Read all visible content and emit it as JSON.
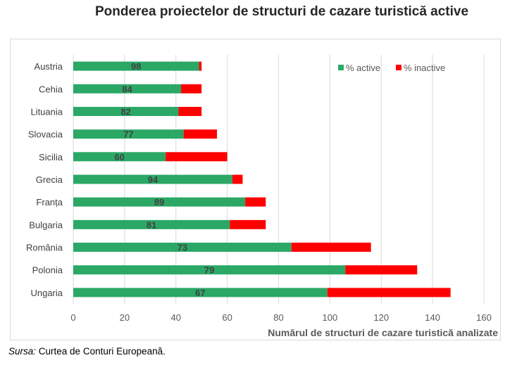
{
  "chart_data": {
    "type": "bar",
    "orientation": "horizontal",
    "stacked": true,
    "title": "Ponderea proiectelor de structuri de cazare turistică active",
    "xlabel": "Numărul de structuri de cazare turistică analizate",
    "ylabel": "",
    "xlim": [
      0,
      160
    ],
    "xticks": [
      0,
      20,
      40,
      60,
      80,
      100,
      120,
      140,
      160
    ],
    "grid": true,
    "legend_position": "top-right",
    "categories": [
      "Austria",
      "Cehia",
      "Lituania",
      "Slovacia",
      "Sicilia",
      "Grecia",
      "Franța",
      "Bulgaria",
      "România",
      "Polonia",
      "Ungaria"
    ],
    "series": [
      {
        "name": "% active",
        "color": "#2BA866",
        "values": [
          49,
          42,
          41,
          43,
          36,
          62,
          67,
          61,
          85,
          106,
          99
        ]
      },
      {
        "name": "% inactive",
        "color": "#FF0000",
        "values": [
          1,
          8,
          9,
          13,
          24,
          4,
          8,
          14,
          31,
          28,
          48
        ]
      }
    ],
    "data_labels": [
      98,
      84,
      82,
      77,
      60,
      94,
      89,
      81,
      73,
      79,
      67
    ]
  },
  "source": {
    "prefix": "Sursa:",
    "text": " Curtea de Conturi Europeană."
  }
}
